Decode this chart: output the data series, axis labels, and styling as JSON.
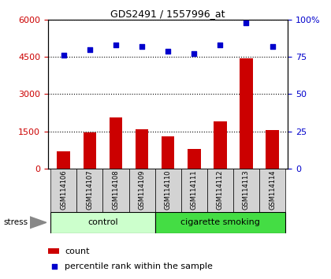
{
  "title": "GDS2491 / 1557996_at",
  "samples": [
    "GSM114106",
    "GSM114107",
    "GSM114108",
    "GSM114109",
    "GSM114110",
    "GSM114111",
    "GSM114112",
    "GSM114113",
    "GSM114114"
  ],
  "counts": [
    700,
    1450,
    2050,
    1600,
    1300,
    800,
    1900,
    4450,
    1550
  ],
  "percentiles": [
    76,
    80,
    83,
    82,
    79,
    77,
    83,
    98,
    82
  ],
  "ylim_left": [
    0,
    6000
  ],
  "ylim_right": [
    0,
    100
  ],
  "yticks_left": [
    0,
    1500,
    3000,
    4500,
    6000
  ],
  "yticks_right": [
    0,
    25,
    50,
    75,
    100
  ],
  "groups": [
    {
      "label": "control",
      "indices": [
        0,
        1,
        2,
        3
      ],
      "color_light": "#ccffcc",
      "color_dark": "#66dd66"
    },
    {
      "label": "cigarette smoking",
      "indices": [
        4,
        5,
        6,
        7,
        8
      ],
      "color_light": "#44dd44",
      "color_dark": "#44dd44"
    }
  ],
  "bar_color": "#cc0000",
  "scatter_color": "#0000cc",
  "stress_label": "stress",
  "legend_count": "count",
  "legend_percentile": "percentile rank within the sample",
  "plot_bg": "#ffffff",
  "title_color": "#000000",
  "bar_width": 0.5,
  "xlim": [
    -0.6,
    8.6
  ]
}
